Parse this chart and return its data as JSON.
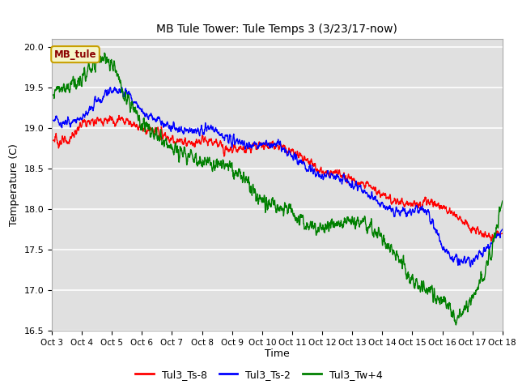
{
  "title": "MB Tule Tower: Tule Temps 3 (3/23/17-now)",
  "xlabel": "Time",
  "ylabel": "Temperature (C)",
  "ylim": [
    16.5,
    20.1
  ],
  "xlim": [
    0,
    15
  ],
  "x_tick_labels": [
    "Oct 3",
    "Oct 4",
    "Oct 5",
    "Oct 6",
    "Oct 7",
    "Oct 8",
    "Oct 9",
    "Oct 10",
    "Oct 11",
    "Oct 12",
    "Oct 13",
    "Oct 14",
    "Oct 15",
    "Oct 16",
    "Oct 17",
    "Oct 18"
  ],
  "x_tick_positions": [
    0,
    1,
    2,
    3,
    4,
    5,
    6,
    7,
    8,
    9,
    10,
    11,
    12,
    13,
    14,
    15
  ],
  "yticks": [
    16.5,
    17.0,
    17.5,
    18.0,
    18.5,
    19.0,
    19.5,
    20.0
  ],
  "line_colors": [
    "red",
    "blue",
    "green"
  ],
  "line_labels": [
    "Tul3_Ts-8",
    "Tul3_Ts-2",
    "Tul3_Tw+4"
  ],
  "line_width": 1.0,
  "bg_color": "#e0e0e0",
  "grid_color": "#ffffff",
  "inset_label": "MB_tule",
  "inset_label_color": "#8b0000",
  "inset_box_facecolor": "#f5f5c8",
  "inset_box_edgecolor": "#c8a000",
  "legend_area_bg": "#ffffff"
}
